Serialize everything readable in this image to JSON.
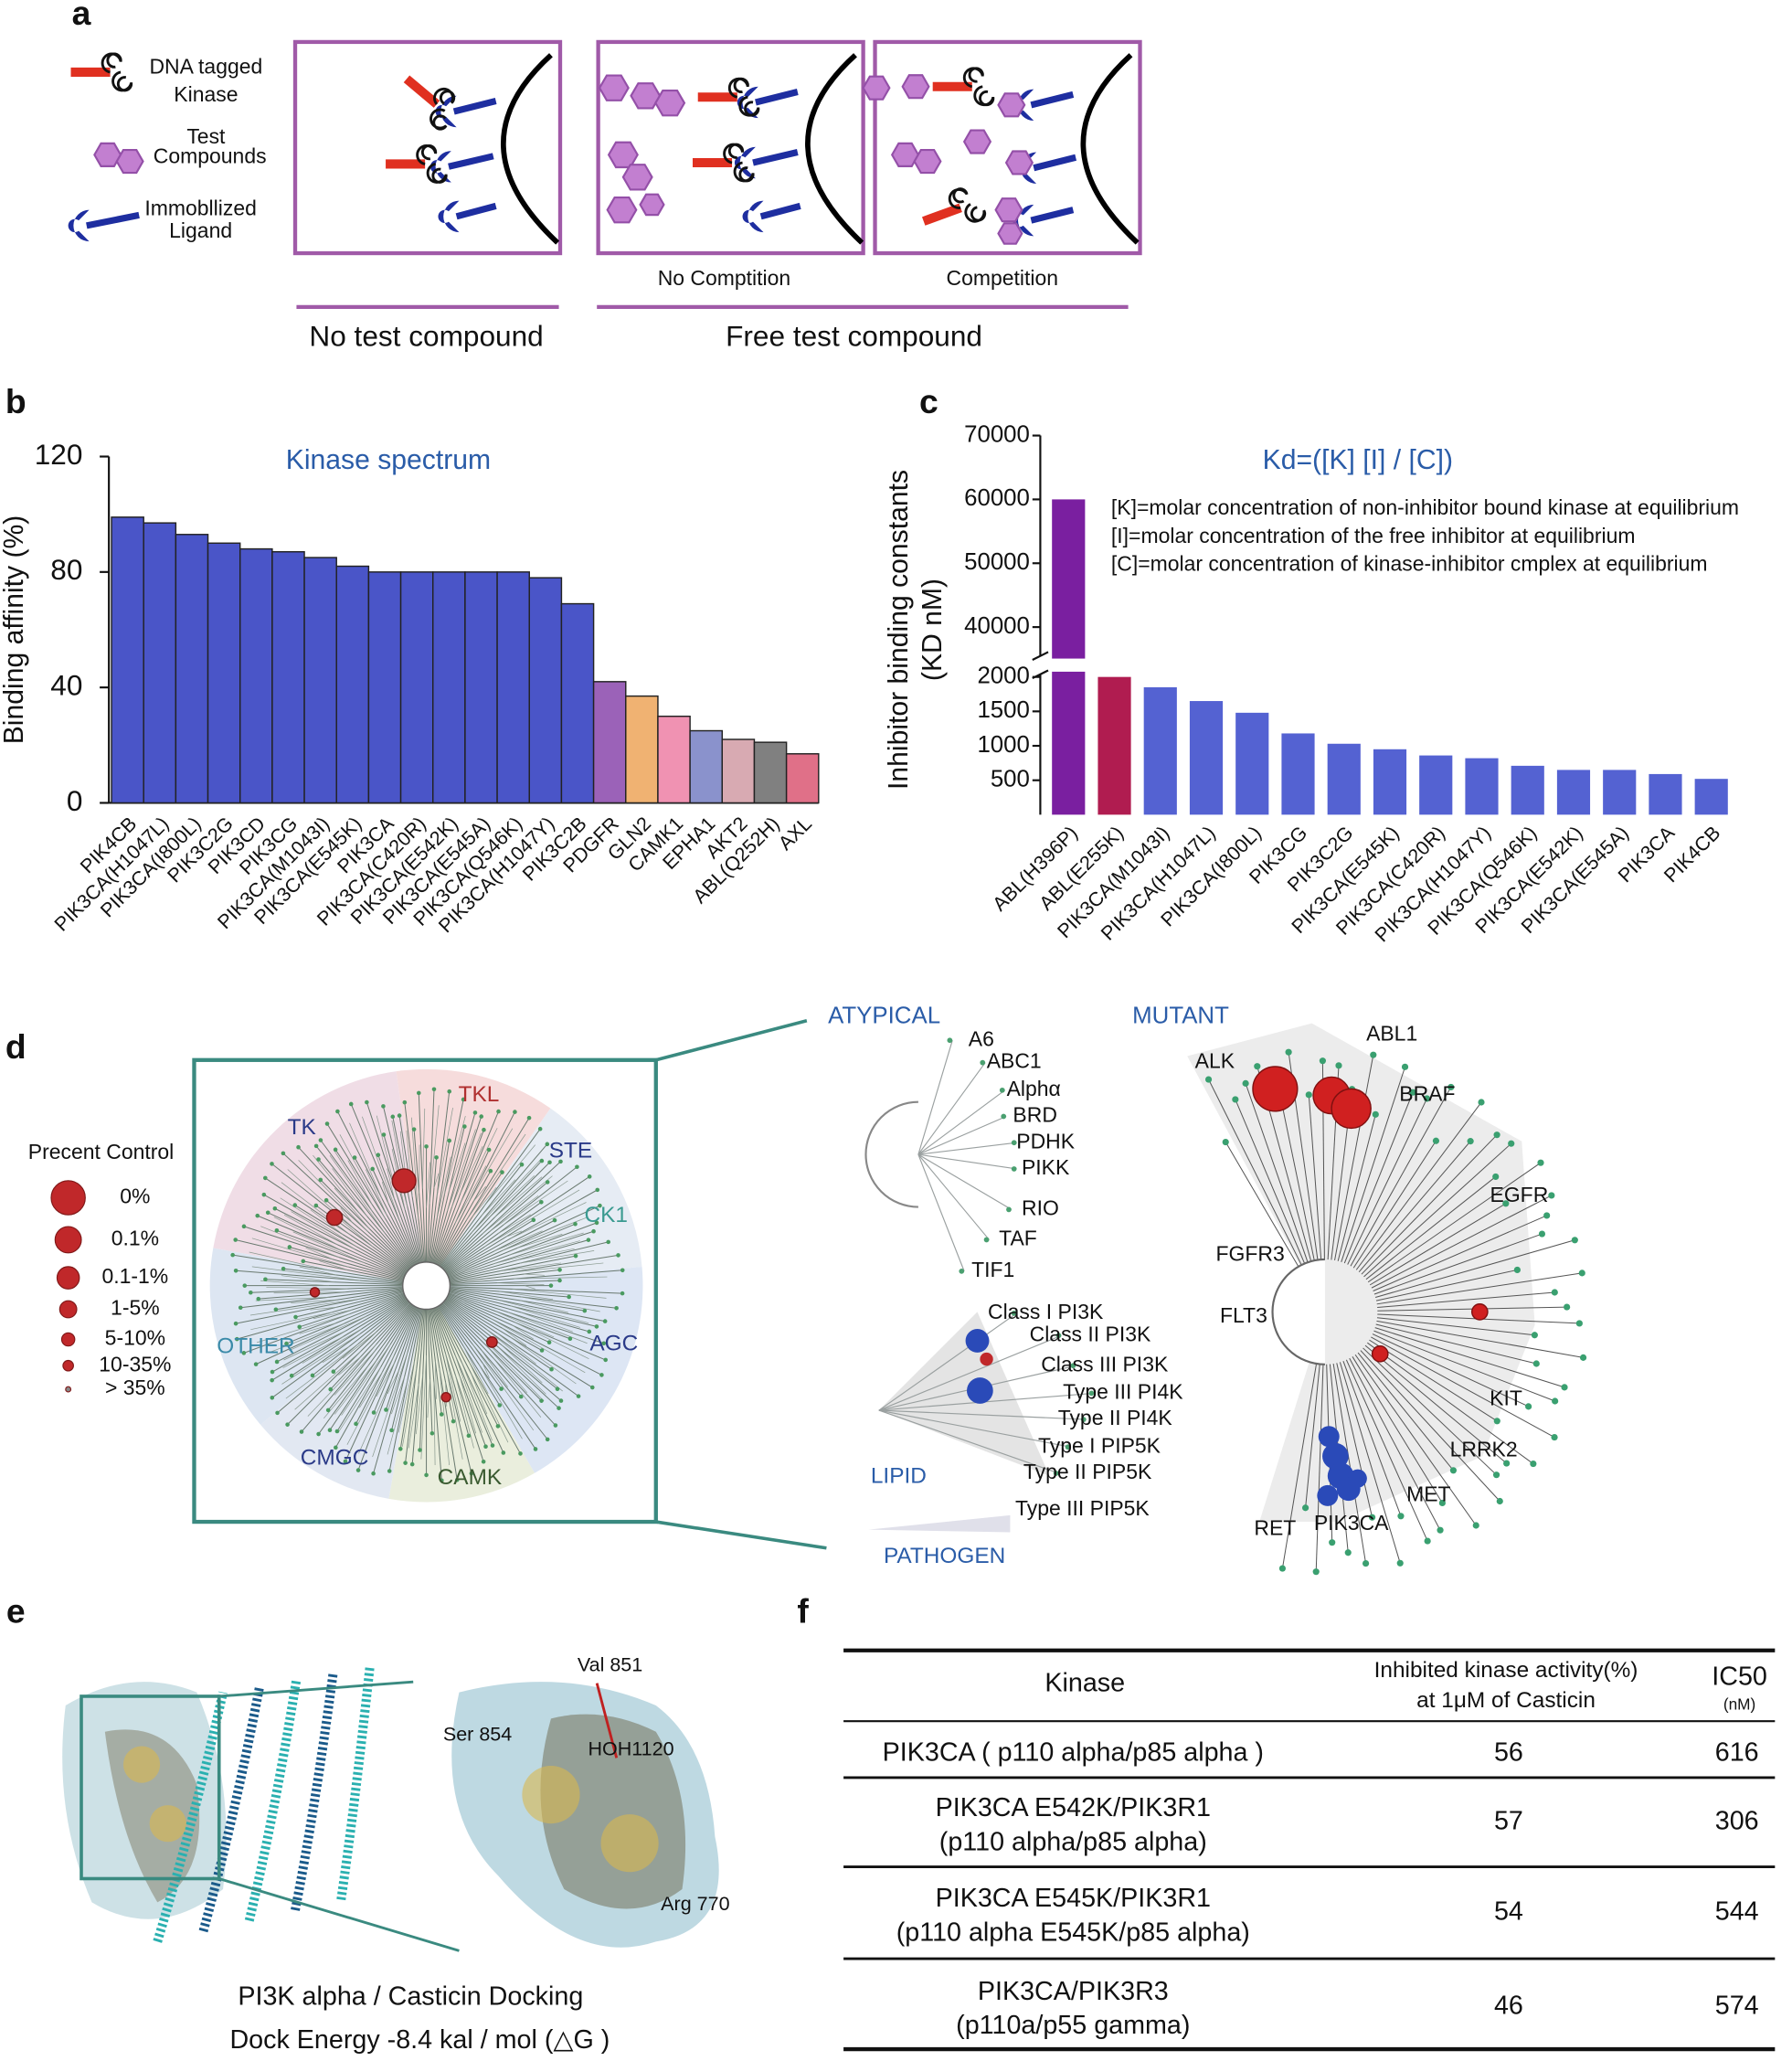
{
  "panel_labels": [
    "a",
    "b",
    "c",
    "d",
    "e",
    "f"
  ],
  "panel_a": {
    "legend": [
      [
        "DNA tagged",
        "Kinase"
      ],
      [
        "Test",
        "Compounds"
      ],
      [
        "Immobllized",
        "Ligand"
      ]
    ],
    "box_labels": [
      "No Comptition",
      "Competition"
    ],
    "group_labels": [
      "No test compound",
      "Free test compound"
    ]
  },
  "chart_data": [
    {
      "type": "bar",
      "annotation": "Kinase spectrum",
      "ylabel": "Binding affinity (%)",
      "categories": [
        "PIK4CB",
        "PIK3CA(H1047L)",
        "PIK3CA(I800L)",
        "PIK3C2G",
        "PIK3CD",
        "PIK3CG",
        "PIK3CA(M1043I)",
        "PIK3CA(E545K)",
        "PIK3CA",
        "PIK3CA(C420R)",
        "PIK3CA(E542K)",
        "PIK3CA(E545A)",
        "PIK3CA(Q546K)",
        "PIK3CA(H1047Y)",
        "PIK3C2B",
        "PDGFR",
        "GLN2",
        "CAMK1",
        "EPHA1",
        "AKT2",
        "ABL(Q252H)",
        "AXL"
      ],
      "values": [
        99,
        97,
        93,
        90,
        88,
        87,
        85,
        82,
        80,
        80,
        80,
        80,
        80,
        78,
        69,
        42,
        37,
        30,
        25,
        22,
        21,
        17
      ],
      "colors": [
        "#4a55c8",
        "#4a55c8",
        "#4a55c8",
        "#4a55c8",
        "#4a55c8",
        "#4a55c8",
        "#4a55c8",
        "#4a55c8",
        "#4a55c8",
        "#4a55c8",
        "#4a55c8",
        "#4a55c8",
        "#4a55c8",
        "#4a55c8",
        "#4a55c8",
        "#9b62b8",
        "#f0b272",
        "#f092b2",
        "#8a92cc",
        "#d8aab2",
        "#808080",
        "#e07088"
      ],
      "ylim": [
        0,
        120
      ],
      "yticks": [
        0,
        40,
        80,
        120
      ]
    },
    {
      "type": "bar",
      "title": "Kd=([K] [I] / [C])",
      "notes": [
        "[K]=molar concentration of non-inhibitor bound kinase at equilibrium",
        "[I]=molar concentration of the free inhibitor at equilibrium",
        "[C]=molar concentration of kinase-inhibitor cmplex at equilibrium"
      ],
      "ylabel": [
        "Inhibitor binding constants",
        "(KD nM)"
      ],
      "categories": [
        "ABL(H396P)",
        "ABL(E255K)",
        "PIK3CA(M1043I)",
        "PIK3CA(H1047L)",
        "PIK3CA(I800L)",
        "PIK3CG",
        "PIK3C2G",
        "PIK3CA(E545K)",
        "PIK3CA(C420R)",
        "PIK3CA(H1047Y)",
        "PIK3CA(Q546K)",
        "PIK3CA(E542K)",
        "PIK3CA(E545A)",
        "PIK3CA",
        "PIK4CB"
      ],
      "values": [
        60000,
        2000,
        1850,
        1650,
        1480,
        1180,
        1030,
        950,
        860,
        820,
        710,
        650,
        650,
        590,
        520
      ],
      "colors": [
        "#7a1fa0",
        "#b01c50",
        "#5462d2",
        "#5462d2",
        "#5462d2",
        "#5462d2",
        "#5462d2",
        "#5462d2",
        "#5462d2",
        "#5462d2",
        "#5462d2",
        "#5462d2",
        "#5462d2",
        "#5462d2",
        "#5462d2"
      ],
      "ylim": [
        0,
        70000
      ],
      "ybreak": [
        2000,
        40000
      ],
      "yticks": [
        500,
        1000,
        1500,
        2000,
        40000,
        50000,
        60000,
        70000
      ]
    }
  ],
  "panel_d": {
    "legend_title": "Precent Control",
    "legend": [
      "0%",
      "0.1%",
      "0.1-1%",
      "1-5%",
      "5-10%",
      "10-35%",
      "> 35%"
    ],
    "groups": [
      "TK",
      "TKL",
      "STE",
      "CK1",
      "AGC",
      "CAMK",
      "CMGC",
      "OTHER"
    ],
    "atypical": {
      "title": "ATYPICAL",
      "labels": [
        "A6",
        "ABC1",
        "Alphα",
        "BRD",
        "PDHK",
        "PIKK",
        "RIO",
        "TAF",
        "TIF1"
      ]
    },
    "lipid": {
      "title": "LIPID",
      "labels": [
        "Class I PI3K",
        "Class II PI3K",
        "Class III PI3K",
        "Type III PI4K",
        "Type II PI4K",
        "Type I PIP5K",
        "Type II PIP5K"
      ]
    },
    "pathogen": {
      "title": "PATHOGEN",
      "labels": [
        "Type III PIP5K"
      ]
    },
    "mutant": {
      "title": "MUTANT",
      "labels": [
        "ALK",
        "ABL1",
        "BRAF",
        "EGFR",
        "FGFR3",
        "FLT3",
        "KIT",
        "LRRK2",
        "MET",
        "RET",
        "PIK3CA"
      ]
    }
  },
  "panel_e": {
    "residues": [
      "Val 851",
      "Ser 854",
      "HOH1120",
      "Arg 770"
    ],
    "caption": "PI3K alpha / Casticin Docking",
    "energy": "Dock Energy   -8.4 kal / mol (△G )"
  },
  "table": {
    "header": [
      [
        "Kinase"
      ],
      [
        "Inhibited kinase activity(%)",
        "at 1μM of Casticin"
      ],
      [
        "IC50",
        "(nM)"
      ]
    ],
    "rows": [
      [
        [
          "PIK3CA ( p110 alpha/p85 alpha )"
        ],
        56,
        616
      ],
      [
        [
          "PIK3CA E542K/PIK3R1",
          "(p110 alpha/p85 alpha)"
        ],
        57,
        306
      ],
      [
        [
          "PIK3CA E545K/PIK3R1",
          "(p110 alpha E545K/p85 alpha)"
        ],
        54,
        544
      ],
      [
        [
          "PIK3CA/PIK3R3",
          "(p110a/p55 gamma)"
        ],
        46,
        574
      ]
    ]
  }
}
